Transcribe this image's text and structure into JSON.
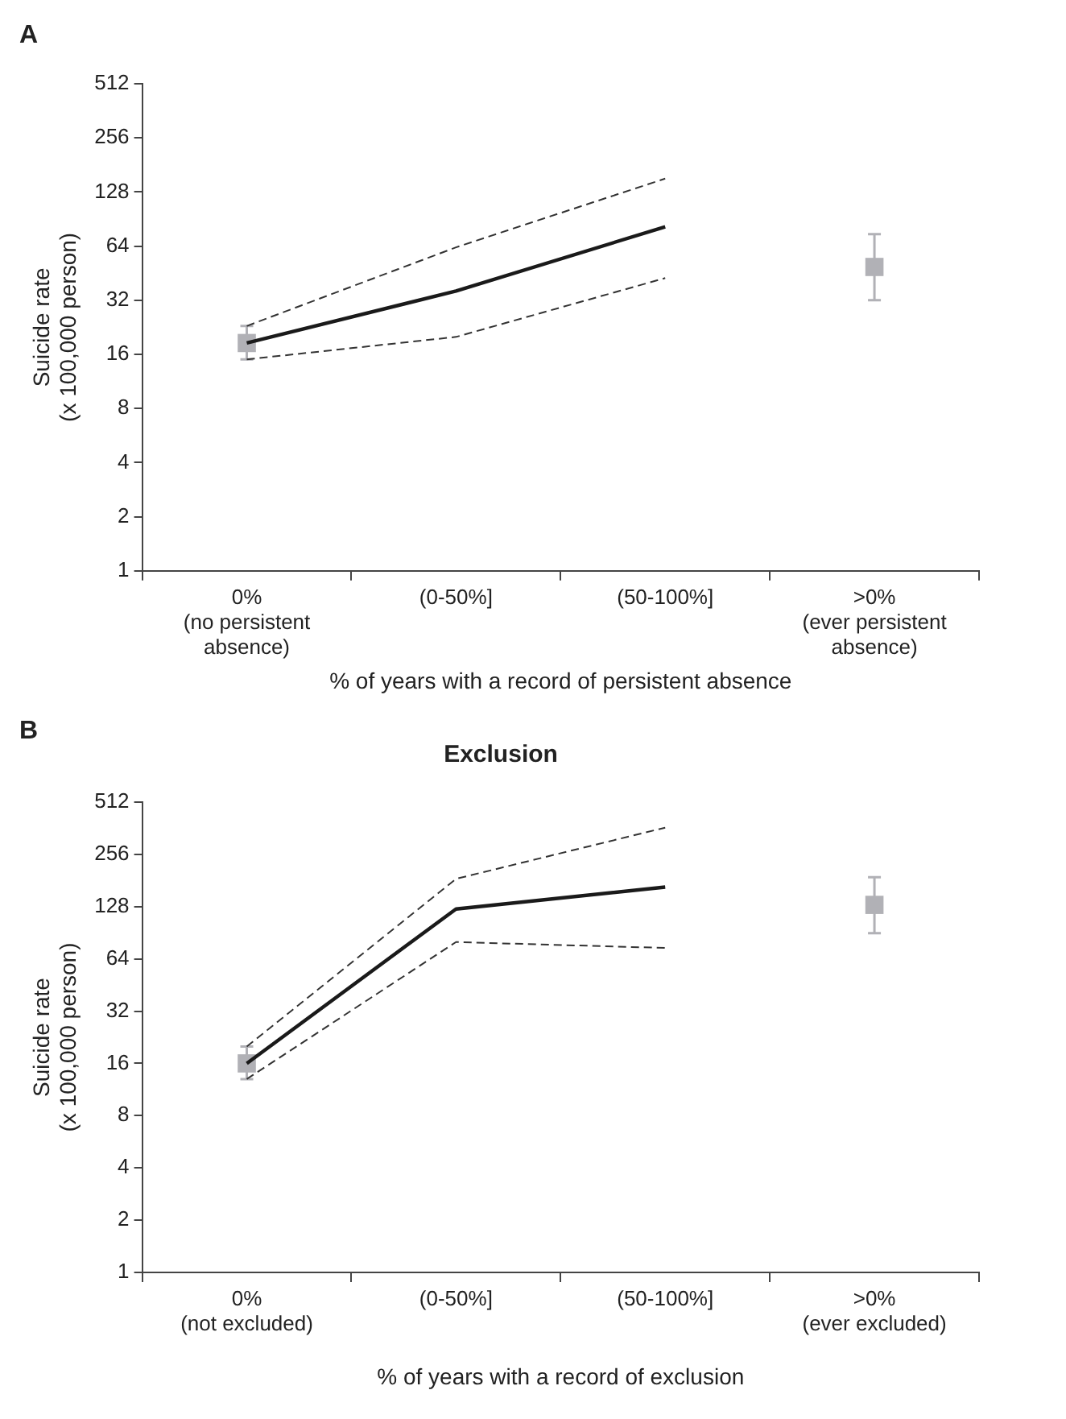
{
  "chart_data": [
    {
      "type": "line",
      "annotations": [
        "A"
      ],
      "categories": [
        "0%\n(no persistent\nabsence)",
        "(0-50%]",
        "(50-100%]",
        ">0%\n(ever persistent\nabsence)"
      ],
      "xlabel": "% of years with a record of persistent absence",
      "ylabel": "Suicide rate\n(x 100,000 person)",
      "log": "y",
      "ylim": [
        1,
        512
      ],
      "yticks": [
        1,
        2,
        4,
        8,
        16,
        32,
        64,
        128,
        256,
        512
      ],
      "series": [
        {
          "color": "#1a1a1a",
          "values": [
            18.5,
            36,
            82,
            null
          ],
          "line_style": "solid",
          "marker": "none"
        },
        {
          "color": "#333333",
          "values": [
            23,
            63,
            152,
            null
          ],
          "line_style": "dashed",
          "marker": "none"
        },
        {
          "color": "#333333",
          "values": [
            15,
            20,
            42.5,
            null
          ],
          "line_style": "dashed",
          "marker": "none"
        },
        {
          "type": "scatter",
          "color": "#b1b1b6",
          "values": [
            18.5,
            null,
            null,
            49
          ],
          "errors": [
            [
              15,
              23
            ],
            null,
            null,
            [
              32,
              74.5
            ]
          ],
          "marker": "square"
        }
      ]
    },
    {
      "type": "line",
      "title": "Exclusion",
      "annotations": [
        "B"
      ],
      "categories": [
        "0%\n(not excluded)",
        "(0-50%]",
        "(50-100%]",
        ">0%\n(ever excluded)"
      ],
      "xlabel": "% of years with a record of exclusion",
      "ylabel": "Suicide rate\n(x 100,000 person)",
      "log": "y",
      "ylim": [
        1,
        512
      ],
      "yticks": [
        1,
        2,
        4,
        8,
        16,
        32,
        64,
        128,
        256,
        512
      ],
      "series": [
        {
          "color": "#1a1a1a",
          "values": [
            16,
            124,
            166,
            null
          ],
          "line_style": "solid",
          "marker": "none"
        },
        {
          "color": "#333333",
          "values": [
            20,
            185,
            365,
            null
          ],
          "line_style": "dashed",
          "marker": "none"
        },
        {
          "color": "#333333",
          "values": [
            13,
            80,
            74,
            null
          ],
          "line_style": "dashed",
          "marker": "none"
        },
        {
          "type": "scatter",
          "color": "#b1b1b6",
          "values": [
            16,
            null,
            null,
            131
          ],
          "errors": [
            [
              13,
              20
            ],
            null,
            null,
            [
              90,
              189
            ]
          ],
          "marker": "square"
        }
      ]
    }
  ]
}
